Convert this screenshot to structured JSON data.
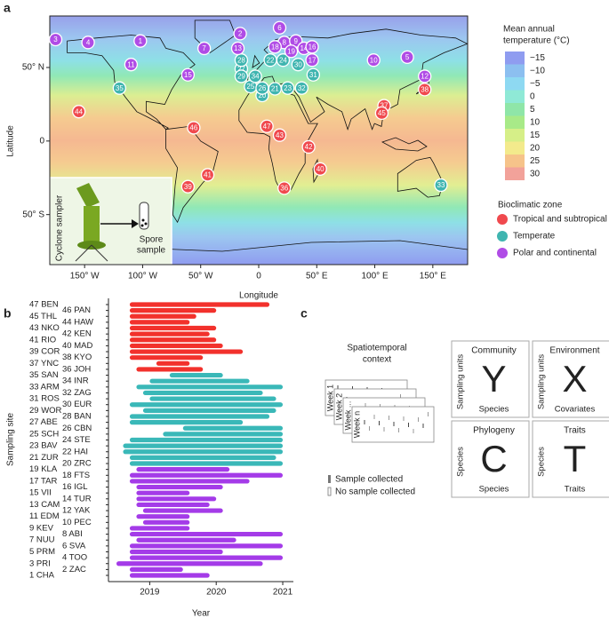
{
  "panel_letters": [
    "a",
    "b",
    "c"
  ],
  "chart_data": [
    {
      "type": "map",
      "xlabel": "Longitude",
      "ylabel": "Latitude",
      "xlim": [
        -180,
        180
      ],
      "ylim": [
        -84,
        85
      ],
      "xticks": [
        {
          "value": -150,
          "label": "150° W"
        },
        {
          "value": -100,
          "label": "100° W"
        },
        {
          "value": -50,
          "label": "50° W"
        },
        0,
        {
          "value": 50,
          "label": "50° E"
        },
        {
          "value": 100,
          "label": "100° E"
        },
        {
          "value": 150,
          "label": "150° E"
        }
      ],
      "yticks": [
        {
          "value": -50,
          "label": "50° S"
        },
        0,
        {
          "value": 50,
          "label": "50° N"
        }
      ],
      "colorbar": {
        "title_lines": [
          "Mean annual",
          "temperature (°C)"
        ],
        "ticks": [
          {
            "value": -15,
            "label": "−15"
          },
          {
            "value": -10,
            "label": "−10"
          },
          {
            "value": -5,
            "label": "−5"
          },
          0,
          5,
          10,
          15,
          20,
          25,
          30
        ],
        "colors": [
          "#8f9cf0",
          "#8cbff0",
          "#8ed9f2",
          "#8fe9d6",
          "#8fe6a8",
          "#a8ea88",
          "#d6ef88",
          "#f3ea8c",
          "#f6c38a",
          "#f2a29a"
        ]
      },
      "legend_title": "Bioclimatic zone",
      "series": [
        {
          "name": "Tropical and subtropical",
          "color": "#f0494e",
          "labels": [
            "36",
            "37",
            "38",
            "39",
            "40",
            "41",
            "42",
            "43",
            "44",
            "45",
            "46",
            "47"
          ],
          "x": [
            22,
            108,
            143,
            -61,
            53,
            -44,
            43,
            18,
            -155,
            106,
            -56,
            7
          ],
          "y": [
            -32,
            24,
            35,
            -31,
            -19,
            -23,
            -4,
            4,
            20,
            19,
            9,
            10
          ]
        },
        {
          "name": "Temperate",
          "color": "#3fb5b0",
          "labels": [
            "20",
            "21",
            "22",
            "23",
            "24",
            "25",
            "26",
            "27",
            "28",
            "29",
            "30",
            "31",
            "32",
            "33",
            "34",
            "35"
          ],
          "x": [
            3,
            14,
            10,
            25,
            21,
            -7,
            3,
            -15,
            -15,
            -15,
            34,
            47,
            37,
            157,
            -3,
            -120
          ],
          "y": [
            31,
            35.5,
            55,
            36,
            55,
            37,
            36,
            49,
            55,
            44,
            52,
            45,
            36,
            -30,
            44,
            36
          ]
        },
        {
          "name": "Polar and continental",
          "color": "#b04ce6",
          "labels": [
            "1",
            "2",
            "3",
            "4",
            "5",
            "6",
            "7",
            "8",
            "9",
            "10",
            "11",
            "12",
            "13",
            "14",
            "15",
            "16",
            "17",
            "18",
            "19"
          ],
          "x": [
            -102,
            -16,
            -175,
            -147,
            128,
            18,
            -47,
            22,
            32,
            99,
            -110,
            143,
            -18,
            39,
            -61,
            46,
            46,
            14,
            28
          ],
          "y": [
            68,
            73,
            69,
            67,
            57,
            77,
            63,
            67,
            68,
            55,
            52,
            44,
            63,
            63,
            45,
            64,
            55,
            64,
            61
          ]
        }
      ],
      "inset": {
        "sampler_label": "Cyclone sampler",
        "spore_label": [
          "Spore",
          "sample"
        ]
      }
    },
    {
      "type": "timeline",
      "xlabel": "Year",
      "ylabel": "Sampling site",
      "xlim": [
        2018.38,
        2021.16
      ],
      "xticks": [
        2019,
        2020,
        2021
      ],
      "series": [
        {
          "color": "#a43be8",
          "categories": [
            "1 CHA",
            "2 ZAC",
            "3 PRI",
            "4 TOO",
            "5 PRM",
            "6 SVA",
            "7 NUU",
            "8 ABI",
            "9 KEV",
            "10 PEC",
            "11 EDM",
            "12 YAK",
            "13 CAM",
            "14 TUR",
            "15 VII",
            "16 IGL",
            "17 TAR",
            "18 FTS",
            "19 KLA"
          ],
          "start": [
            2018.7,
            2018.7,
            2018.5,
            2018.7,
            2018.7,
            2018.7,
            2018.8,
            2018.7,
            2018.7,
            2018.9,
            2018.8,
            2018.9,
            2018.8,
            2018.8,
            2018.8,
            2018.8,
            2018.7,
            2018.7,
            2018.8
          ],
          "end": [
            2019.9,
            2019.5,
            2020.7,
            2021.0,
            2020.1,
            2021.0,
            2020.3,
            2021.0,
            2019.6,
            2019.6,
            2019.6,
            2020.1,
            2019.9,
            2020.0,
            2019.6,
            2020.1,
            2020.5,
            2021.0,
            2020.2
          ]
        },
        {
          "color": "#3ab8b8",
          "categories": [
            "20 ZRC",
            "21 ZUR",
            "22 HAI",
            "23 BAV",
            "24 STE",
            "25 SCH",
            "26 CBN",
            "27 ABE",
            "28 BAN",
            "29 WOR",
            "30 EUR",
            "31 ROS",
            "32 ZAG",
            "33 ARM",
            "34 INR",
            "35 SAN"
          ],
          "start": [
            2018.7,
            2018.7,
            2018.6,
            2018.6,
            2018.7,
            2019.2,
            2019.5,
            2018.7,
            2018.7,
            2018.9,
            2018.7,
            2019.0,
            2018.9,
            2018.8,
            2019.0,
            2019.3
          ],
          "end": [
            2021.0,
            2020.9,
            2021.0,
            2021.0,
            2021.0,
            2021.0,
            2021.0,
            2020.4,
            2020.8,
            2020.9,
            2021.0,
            2020.9,
            2020.7,
            2021.0,
            2020.5,
            2020.1
          ]
        },
        {
          "color": "#f2312c",
          "categories": [
            "36 JOH",
            "37 YNC",
            "38 KYO",
            "39 COR",
            "40 MAD",
            "41 RIO",
            "42 KEN",
            "43 NKO",
            "44 HAW",
            "45 THL",
            "46 PAN",
            "47 BEN"
          ],
          "start": [
            2018.8,
            2019.1,
            2018.7,
            2018.7,
            2018.7,
            2018.7,
            2018.7,
            2018.7,
            2018.7,
            2018.7,
            2018.7,
            2018.7
          ],
          "end": [
            2019.8,
            2019.6,
            2019.8,
            2020.4,
            2020.1,
            2020.0,
            2019.9,
            2020.0,
            2019.6,
            2019.7,
            2020.0,
            2020.8
          ]
        }
      ]
    }
  ],
  "panel_c": {
    "context_title": [
      "Spatiotemporal",
      "context"
    ],
    "weeks": [
      "Week 1",
      "Week 2",
      "Week ...",
      "Week n"
    ],
    "legend": [
      "Sample collected",
      "No sample collected"
    ],
    "matrices": [
      {
        "title": "Community",
        "letter": "Y",
        "row_label": "Sampling units",
        "col_label": "Species"
      },
      {
        "title": "Environment",
        "letter": "X",
        "row_label": "Sampling units",
        "col_label": "Covariates"
      },
      {
        "title": "Phylogeny",
        "letter": "C",
        "row_label": "Species",
        "col_label": "Species"
      },
      {
        "title": "Traits",
        "letter": "T",
        "row_label": "Species",
        "col_label": "Traits"
      }
    ]
  }
}
